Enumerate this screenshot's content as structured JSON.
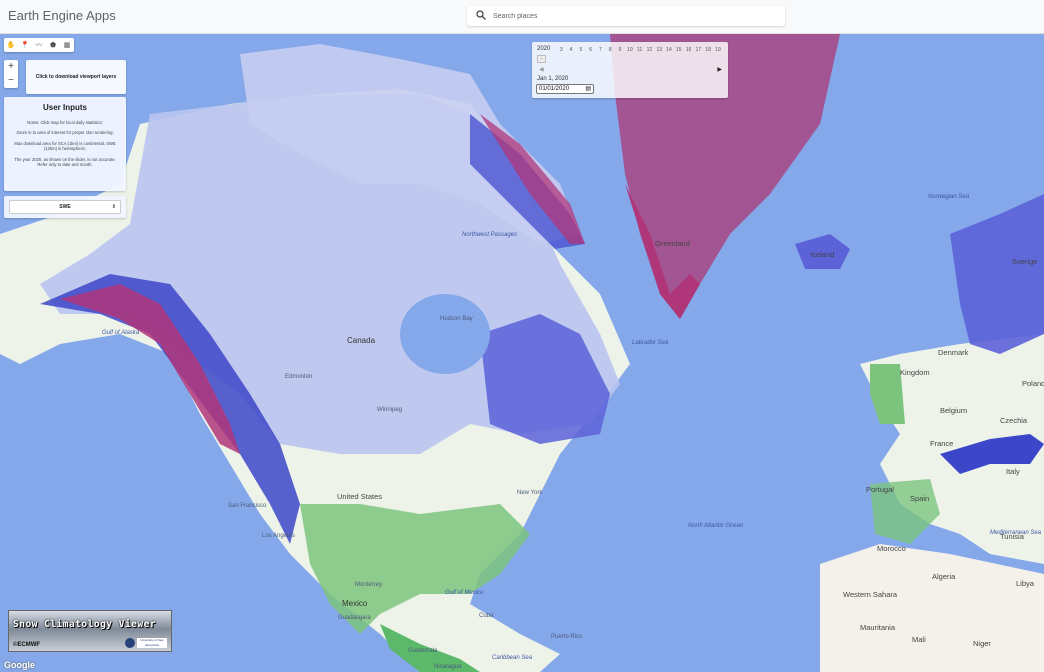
{
  "header": {
    "app_title": "Earth Engine Apps",
    "search_placeholder": "Search places"
  },
  "draw_tools": [
    "hand-icon",
    "marker-icon",
    "polyline-icon",
    "polygon-icon",
    "rectangle-icon"
  ],
  "zoom": {
    "in": "+",
    "out": "−"
  },
  "download_panel": {
    "label": "Click to download viewport layers"
  },
  "user_inputs": {
    "title": "User Inputs",
    "notes": [
      "Notes: Click map for local daily statistics;",
      "Zoom in to area of interest for proper 1km rendering;",
      "Max download area for SCA (1km) is continental, SWE (12km) is hemispheric;",
      "The year 2020, as shown on the slider, is not accurate. Refer only to date and month."
    ],
    "variable_select": "SWE"
  },
  "date_slider": {
    "year": "2020",
    "ticks": [
      "3",
      "4",
      "5",
      "6",
      "7",
      "8",
      "9",
      "10",
      "11",
      "12",
      "13",
      "14",
      "15",
      "16",
      "17",
      "18",
      "19"
    ],
    "prev": "◀",
    "next": "▶",
    "date_label": "Jan 1, 2020",
    "date_value": "01/01/2020"
  },
  "logo": {
    "title": "Snow Climatology Viewer",
    "ecmwf": "©ECMWF",
    "university": "University of New Hampshire"
  },
  "attribution": "Google",
  "map_labels": {
    "greenland": "Greenland",
    "canada": "Canada",
    "united_states": "United States",
    "mexico": "Mexico",
    "hudson_bay": "Hudson Bay",
    "labrador_sea": "Labrador Sea",
    "northwest_passages": "Northwest Passages",
    "norwegian_sea": "Norwegian Sea",
    "gulf_of_alaska": "Gulf of Alaska",
    "north_atlantic_ocean": "North Atlantic Ocean",
    "gulf_of_mexico": "Gulf of Mexico",
    "caribbean_sea": "Caribbean Sea",
    "mediterranean_sea": "Mediterranean Sea",
    "iceland": "Iceland",
    "sverige": "Sverige",
    "kingdom": "Kingdom",
    "denmark": "Denmark",
    "belgium": "Belgium",
    "czechia": "Czechia",
    "poland": "Poland",
    "france": "France",
    "italy": "Italy",
    "spain": "Spain",
    "portugal": "Portugal",
    "tunisia": "Tunisia",
    "algeria": "Algeria",
    "libya": "Libya",
    "western_sahara": "Western Sahara",
    "mauritania": "Mauritania",
    "mali": "Mali",
    "niger": "Niger",
    "morocco": "Morocco",
    "edmonton": "Edmonton",
    "winnipeg": "Winnipeg",
    "san_francisco": "San Francisco",
    "los_angeles": "Los Angeles",
    "new_york": "New York",
    "cuba": "Cuba",
    "puerto_rico": "Puerto Rico",
    "guatemala": "Guatemala",
    "nicaragua": "Nicaragua",
    "monterrey": "Monterrey",
    "guadalajara": "Guadalajara"
  },
  "colors": {
    "ocean": "#84a8ea",
    "snow_high": "#b0367a",
    "snow_mid": "#3c46c8",
    "snow_low": "#b9c4ef",
    "land": "#eef3ea",
    "vegetation": "#5cb86b"
  }
}
